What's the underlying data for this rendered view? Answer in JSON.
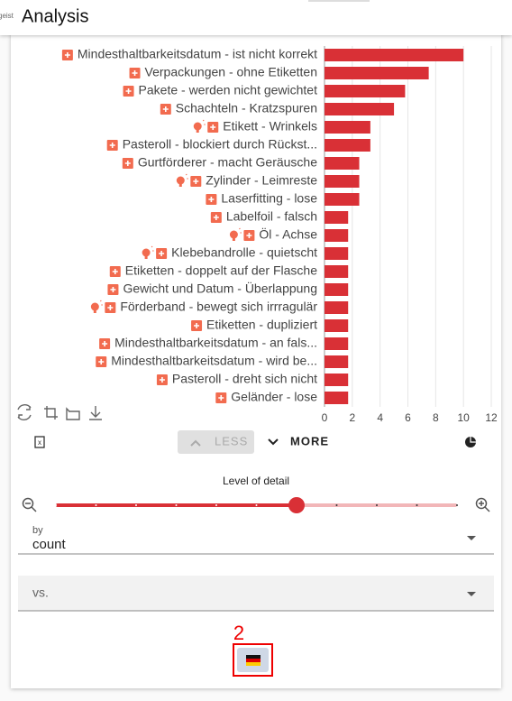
{
  "header": {
    "brand": "geist",
    "title": "Analysis"
  },
  "chart": {
    "type": "bar",
    "orientation": "horizontal",
    "color": "#d93036",
    "categories": [
      "Mindesthaltbarkeitsdatum - ist nicht korrekt",
      "Verpackungen - ohne Etiketten",
      "Pakete - werden nicht gewichtet",
      "Schachteln - Kratzspuren",
      "Etikett - Wrinkels",
      "Pasteroll - blockiert durch Rückst...",
      "Gurtförderer - macht Geräusche",
      "Zylinder - Leimreste",
      "Laserfitting - lose",
      "Labelfoil - falsch",
      "Öl - Achse",
      "Klebebandrolle - quietscht",
      "Etiketten - doppelt auf der Flasche",
      "Gewicht und Datum - Überlappung",
      "Förderband - bewegt sich irrragulär",
      "Etiketten - dupliziert",
      "Mindesthaltbarkeitsdatum - an fals...",
      "Mindesthaltbarkeitsdatum - wird be...",
      "Pasteroll - dreht sich nicht",
      "Geländer - lose"
    ],
    "values": [
      10,
      7.5,
      5.8,
      5,
      3.3,
      3.3,
      2.5,
      2.5,
      2.5,
      1.7,
      1.7,
      1.7,
      1.7,
      1.7,
      1.7,
      1.7,
      1.7,
      1.7,
      1.7,
      1.7
    ],
    "xlim": [
      0,
      12
    ],
    "xticks": [
      0,
      2,
      4,
      6,
      8,
      10,
      12
    ],
    "grid": true
  },
  "controls": {
    "less": "LESS",
    "more": "MORE",
    "level_of_detail": "Level of detail",
    "by_label": "by",
    "by_value": "count",
    "vs_label": "vs.",
    "badge": "2"
  }
}
